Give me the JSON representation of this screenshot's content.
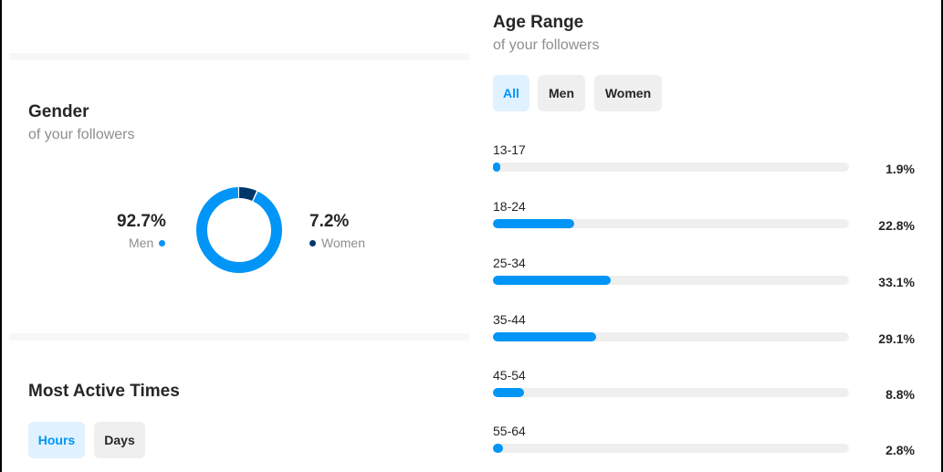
{
  "gender": {
    "title": "Gender",
    "subtitle": "of your followers",
    "men": {
      "percent": "92.7%",
      "label": "Men",
      "value": 92.7,
      "color": "#0095f6"
    },
    "women": {
      "percent": "7.2%",
      "label": "Women",
      "value": 7.2,
      "color": "#00376b"
    }
  },
  "active_times": {
    "title": "Most Active Times",
    "tabs": [
      {
        "label": "Hours",
        "active": true
      },
      {
        "label": "Days",
        "active": false
      }
    ]
  },
  "age_range": {
    "title": "Age Range",
    "subtitle": "of your followers",
    "filters": [
      {
        "label": "All",
        "active": true
      },
      {
        "label": "Men",
        "active": false
      },
      {
        "label": "Women",
        "active": false
      }
    ],
    "rows": [
      {
        "label": "13-17",
        "value_text": "1.9%",
        "value": 1.9
      },
      {
        "label": "18-24",
        "value_text": "22.8%",
        "value": 22.8
      },
      {
        "label": "25-34",
        "value_text": "33.1%",
        "value": 33.1
      },
      {
        "label": "35-44",
        "value_text": "29.1%",
        "value": 29.1
      },
      {
        "label": "45-54",
        "value_text": "8.8%",
        "value": 8.8
      },
      {
        "label": "55-64",
        "value_text": "2.8%",
        "value": 2.8
      }
    ],
    "bar_scale_max": 100
  },
  "colors": {
    "accent": "#0095f6",
    "dark_accent": "#00376b",
    "track": "#efefef",
    "muted_text": "#8e8e8e"
  }
}
